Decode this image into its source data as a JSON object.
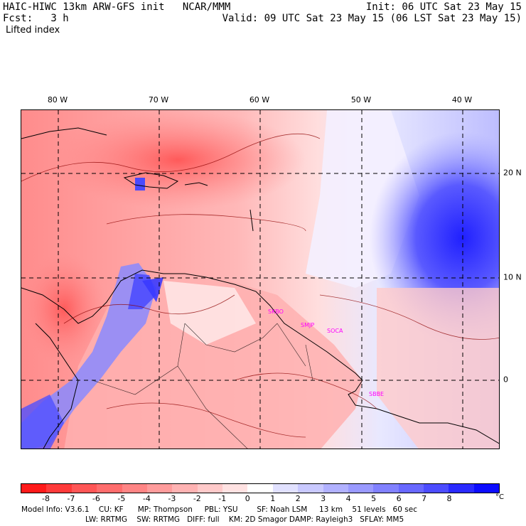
{
  "header": {
    "line1_left": "HAIC-HIWC 13km ARW-GFS init   NCAR/MMM",
    "line2_left": "Fcst:   3 h",
    "field_name": "Lifted index",
    "line1_right": "Init: 06 UTC Sat 23 May 15",
    "line2_right": "Valid: 09 UTC Sat 23 May 15 (06 LST Sat 23 May 15)"
  },
  "map": {
    "longitude_labels": [
      "80 W",
      "70 W",
      "60 W",
      "50 W",
      "40 W"
    ],
    "latitude_labels": [
      "20 N",
      "10 N",
      "0"
    ],
    "stations": [
      "SKBO",
      "SMJP",
      "SOCA",
      "SBBE"
    ]
  },
  "colorbar": {
    "labels": [
      "-8",
      "-7",
      "-6",
      "-5",
      "-4",
      "-3",
      "-2",
      "-1",
      "0",
      "1",
      "2",
      "3",
      "4",
      "5",
      "6",
      "7",
      "8"
    ],
    "unit": "°C",
    "colors": [
      "#ff1a1a",
      "#ff3a3a",
      "#ff5656",
      "#ff6d6d",
      "#ff8585",
      "#ff9c9c",
      "#ffb3b3",
      "#ffcaca",
      "#ffe2e2",
      "#ffffff",
      "#e1e1ff",
      "#c9c9ff",
      "#b1b1ff",
      "#9a9aff",
      "#8181ff",
      "#6868ff",
      "#4c4cff",
      "#2a2aff",
      "#0c0cff"
    ]
  },
  "footer": {
    "line1": "Model Info: V3.6.1    CU: KF      MP: Thompson     PBL: YSU        SF: Noah LSM     13 km    51 levels   60 sec",
    "line2": "LW: RRTMG    SW: RRTMG   DIFF: full    KM: 2D Smagor DAMP: Rayleigh3   SFLAY: MM5"
  }
}
